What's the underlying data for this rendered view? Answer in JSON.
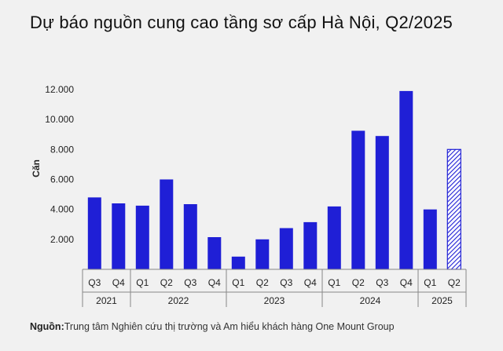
{
  "title": "Dự báo nguồn cung cao tầng sơ cấp Hà Nội, Q2/2025",
  "source": {
    "label": "Nguồn:",
    "text": "Trung tâm Nghiên cứu thị trường và Am hiểu khách hàng One Mount Group"
  },
  "colors": {
    "bar": "#1f1fd6",
    "forecast_hatch": "#1f1fd6",
    "background": "#f1f1f1"
  },
  "chart_data": {
    "type": "bar",
    "title": "Dự báo nguồn cung cao tầng sơ cấp Hà Nội, Q2/2025",
    "xlabel": "",
    "ylabel": "Căn",
    "ylim": [
      0,
      12000
    ],
    "yticks": [
      2000,
      4000,
      6000,
      8000,
      10000,
      12000
    ],
    "ytick_labels": [
      "2.000",
      "4.000",
      "6.000",
      "8.000",
      "10.000",
      "12.000"
    ],
    "grid": false,
    "categories": [
      "Q3",
      "Q4",
      "Q1",
      "Q2",
      "Q3",
      "Q4",
      "Q1",
      "Q2",
      "Q3",
      "Q4",
      "Q1",
      "Q2",
      "Q3",
      "Q4",
      "Q1",
      "Q2"
    ],
    "values": [
      4800,
      4400,
      4250,
      6000,
      4350,
      2150,
      850,
      2000,
      2750,
      3150,
      4200,
      9250,
      8900,
      11900,
      4000,
      8000
    ],
    "forecast": [
      false,
      false,
      false,
      false,
      false,
      false,
      false,
      false,
      false,
      false,
      false,
      false,
      false,
      false,
      false,
      true
    ],
    "year_groups": [
      {
        "label": "2021",
        "count": 2
      },
      {
        "label": "2022",
        "count": 4
      },
      {
        "label": "2023",
        "count": 4
      },
      {
        "label": "2024",
        "count": 4
      },
      {
        "label": "2025",
        "count": 2
      }
    ]
  }
}
